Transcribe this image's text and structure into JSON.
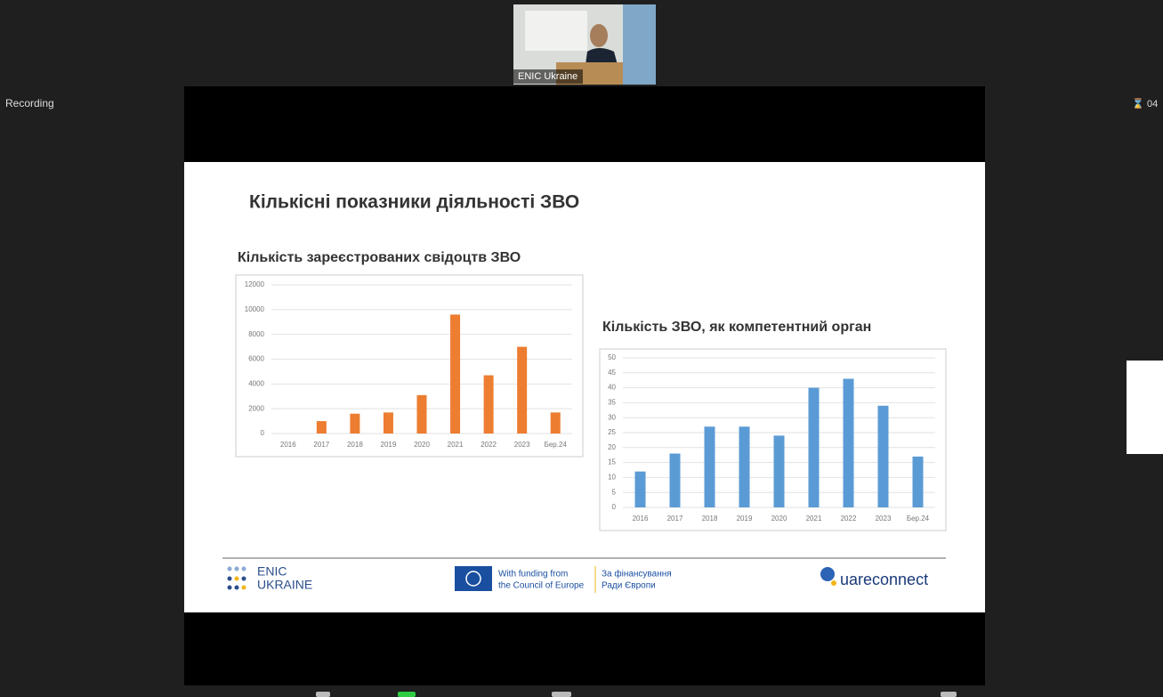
{
  "recording": "Recording",
  "timer": "04",
  "video": {
    "label": "ENIC Ukraine"
  },
  "slide": {
    "title": "Кількісні показники діяльності ЗВО",
    "footer": {
      "enic_logo": [
        "ENIC",
        "UKRAINE"
      ],
      "funding_en": [
        "With funding from",
        "the Council of Europe"
      ],
      "funding_uk": [
        "За фінансування",
        "Ради Європи"
      ],
      "partner": "uareconnect"
    }
  },
  "chart_data": [
    {
      "type": "bar",
      "title": "Кількість зареєстрованих свідоцтв ЗВО",
      "categories": [
        "2016",
        "2017",
        "2018",
        "2019",
        "2020",
        "2021",
        "2022",
        "2023",
        "Бер.24"
      ],
      "values": [
        0,
        1000,
        1600,
        1700,
        3100,
        9600,
        4700,
        7000,
        1700
      ],
      "color": "#ed7d31",
      "ylim": [
        0,
        12000
      ],
      "yticks": [
        0,
        2000,
        4000,
        6000,
        8000,
        10000,
        12000
      ],
      "grid": true
    },
    {
      "type": "bar",
      "title": "Кількість ЗВО, як компетентний орган",
      "categories": [
        "2016",
        "2017",
        "2018",
        "2019",
        "2020",
        "2021",
        "2022",
        "2023",
        "Бер.24"
      ],
      "values": [
        12,
        18,
        27,
        27,
        24,
        40,
        43,
        34,
        17
      ],
      "color": "#5b9bd5",
      "ylim": [
        0,
        50
      ],
      "yticks": [
        0,
        5,
        10,
        15,
        20,
        25,
        30,
        35,
        40,
        45,
        50
      ],
      "grid": true
    }
  ]
}
